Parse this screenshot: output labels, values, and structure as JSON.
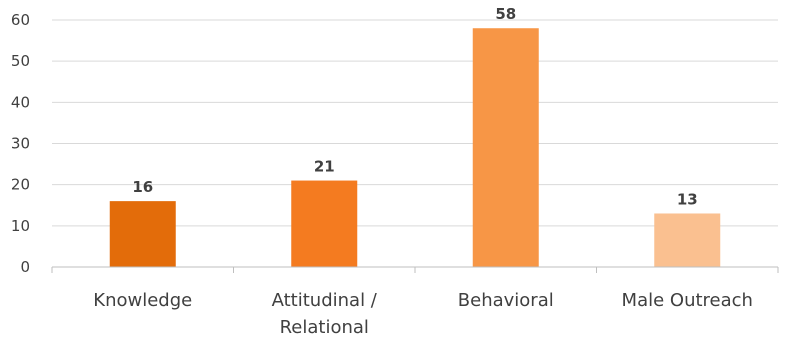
{
  "chart_data": {
    "type": "bar",
    "categories": [
      "Knowledge",
      "Attitudinal / Relational",
      "Behavioral",
      "Male Outreach"
    ],
    "category_lines": [
      [
        "Knowledge"
      ],
      [
        "Attitudinal /",
        "Relational"
      ],
      [
        "Behavioral"
      ],
      [
        "Male Outreach"
      ]
    ],
    "values": [
      16,
      21,
      58,
      13
    ],
    "data_labels": [
      "16",
      "21",
      "58",
      "13"
    ],
    "colors": [
      "#e36c0a",
      "#f47b20",
      "#f79646",
      "#fac090"
    ],
    "ylim": [
      0,
      60
    ],
    "yticks": [
      0,
      10,
      20,
      30,
      40,
      50,
      60
    ],
    "grid": true,
    "title": "",
    "xlabel": "",
    "ylabel": ""
  }
}
